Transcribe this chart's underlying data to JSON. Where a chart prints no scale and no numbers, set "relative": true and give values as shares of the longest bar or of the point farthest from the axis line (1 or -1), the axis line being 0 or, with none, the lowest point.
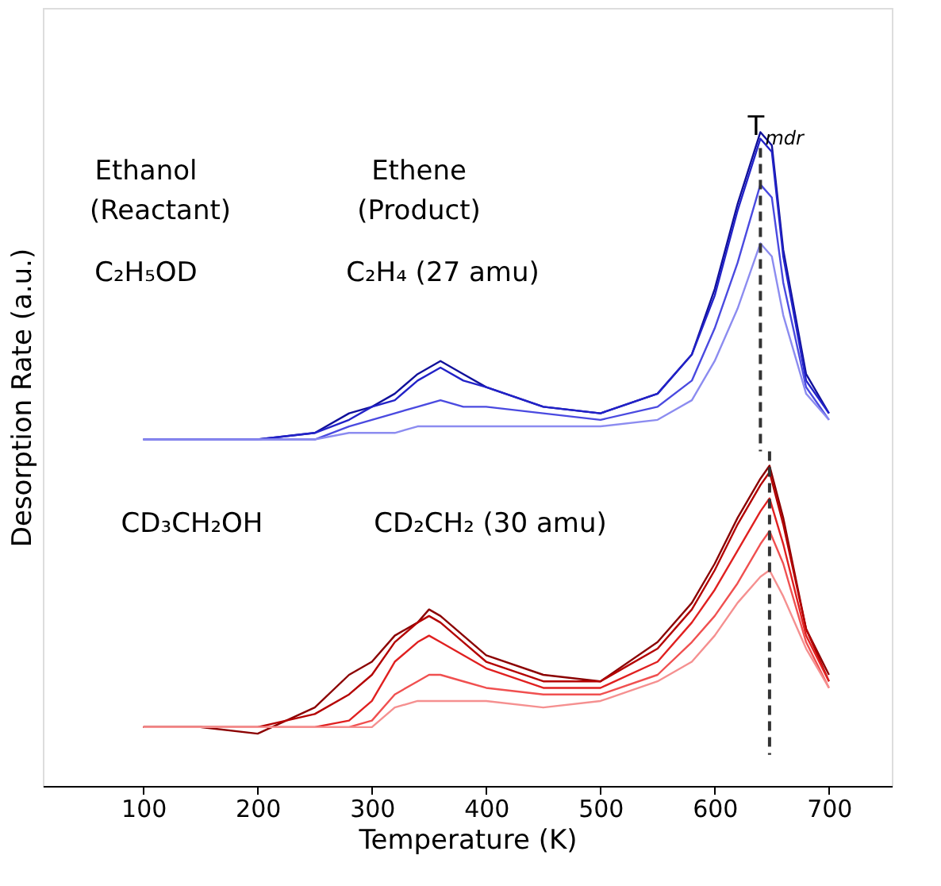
{
  "chart_data": {
    "type": "line",
    "relative": true,
    "xlabel": "Temperature (K)",
    "ylabel": "Desorption Rate (a.u.)",
    "xlim": [
      12,
      755
    ],
    "xticks": [
      100,
      200,
      300,
      400,
      500,
      600,
      700
    ],
    "grid": false,
    "legend": false,
    "marker": "none",
    "line_style": "solid",
    "series": [
      {
        "color": "#10109a",
        "x": [
          100,
          150,
          200,
          250,
          280,
          300,
          320,
          340,
          360,
          380,
          400,
          450,
          500,
          550,
          580,
          600,
          620,
          640,
          650,
          660,
          680,
          700
        ],
        "values": [
          0.53,
          0.53,
          0.53,
          0.54,
          0.57,
          0.58,
          0.6,
          0.63,
          0.65,
          0.63,
          0.61,
          0.58,
          0.57,
          0.6,
          0.66,
          0.76,
          0.89,
          1.0,
          0.98,
          0.82,
          0.63,
          0.57
        ]
      },
      {
        "color": "#2222c8",
        "x": [
          100,
          150,
          200,
          250,
          280,
          300,
          320,
          340,
          360,
          380,
          400,
          450,
          500,
          550,
          580,
          600,
          620,
          640,
          650,
          660,
          680,
          700
        ],
        "values": [
          0.53,
          0.53,
          0.53,
          0.54,
          0.56,
          0.58,
          0.59,
          0.62,
          0.64,
          0.62,
          0.61,
          0.58,
          0.57,
          0.6,
          0.66,
          0.75,
          0.88,
          0.99,
          0.97,
          0.81,
          0.62,
          0.57
        ]
      },
      {
        "color": "#4a4ae0",
        "x": [
          100,
          150,
          200,
          250,
          280,
          300,
          320,
          340,
          360,
          380,
          400,
          450,
          500,
          550,
          580,
          600,
          620,
          640,
          650,
          660,
          680,
          700
        ],
        "values": [
          0.53,
          0.53,
          0.53,
          0.53,
          0.55,
          0.56,
          0.57,
          0.58,
          0.59,
          0.58,
          0.58,
          0.57,
          0.56,
          0.58,
          0.62,
          0.7,
          0.8,
          0.92,
          0.9,
          0.77,
          0.61,
          0.56
        ]
      },
      {
        "color": "#8c8cf0",
        "x": [
          100,
          150,
          200,
          250,
          280,
          300,
          320,
          340,
          360,
          380,
          400,
          450,
          500,
          550,
          580,
          600,
          620,
          640,
          650,
          660,
          680,
          700
        ],
        "values": [
          0.53,
          0.53,
          0.53,
          0.53,
          0.54,
          0.54,
          0.54,
          0.55,
          0.55,
          0.55,
          0.55,
          0.55,
          0.55,
          0.56,
          0.59,
          0.65,
          0.73,
          0.83,
          0.81,
          0.72,
          0.6,
          0.56
        ]
      },
      {
        "color": "#8b0000",
        "x": [
          100,
          150,
          200,
          250,
          280,
          300,
          320,
          340,
          350,
          360,
          380,
          400,
          450,
          500,
          550,
          580,
          600,
          620,
          640,
          648,
          660,
          680,
          700
        ],
        "values": [
          0.09,
          0.09,
          0.08,
          0.12,
          0.17,
          0.19,
          0.23,
          0.25,
          0.27,
          0.26,
          0.23,
          0.2,
          0.17,
          0.16,
          0.22,
          0.28,
          0.34,
          0.41,
          0.47,
          0.49,
          0.41,
          0.24,
          0.17
        ]
      },
      {
        "color": "#b40000",
        "x": [
          100,
          150,
          200,
          250,
          280,
          300,
          320,
          340,
          350,
          360,
          380,
          400,
          450,
          500,
          550,
          580,
          600,
          620,
          640,
          648,
          660,
          680,
          700
        ],
        "values": [
          0.09,
          0.09,
          0.09,
          0.11,
          0.14,
          0.17,
          0.22,
          0.25,
          0.26,
          0.25,
          0.22,
          0.19,
          0.16,
          0.16,
          0.21,
          0.27,
          0.33,
          0.4,
          0.46,
          0.48,
          0.4,
          0.24,
          0.16
        ]
      },
      {
        "color": "#e02020",
        "x": [
          100,
          150,
          200,
          250,
          280,
          300,
          320,
          340,
          350,
          360,
          380,
          400,
          450,
          500,
          550,
          580,
          600,
          620,
          640,
          648,
          660,
          680,
          700
        ],
        "values": [
          0.09,
          0.09,
          0.09,
          0.09,
          0.1,
          0.13,
          0.19,
          0.22,
          0.23,
          0.22,
          0.2,
          0.18,
          0.15,
          0.15,
          0.19,
          0.25,
          0.3,
          0.36,
          0.42,
          0.44,
          0.37,
          0.23,
          0.16
        ]
      },
      {
        "color": "#f05050",
        "x": [
          100,
          150,
          200,
          250,
          280,
          300,
          320,
          340,
          350,
          360,
          380,
          400,
          450,
          500,
          550,
          580,
          600,
          620,
          640,
          648,
          660,
          680,
          700
        ],
        "values": [
          0.09,
          0.09,
          0.09,
          0.09,
          0.09,
          0.1,
          0.14,
          0.16,
          0.17,
          0.17,
          0.16,
          0.15,
          0.14,
          0.14,
          0.17,
          0.22,
          0.26,
          0.31,
          0.37,
          0.39,
          0.34,
          0.22,
          0.15
        ]
      },
      {
        "color": "#f59090",
        "x": [
          100,
          150,
          200,
          250,
          280,
          300,
          320,
          340,
          350,
          360,
          380,
          400,
          450,
          500,
          550,
          580,
          600,
          620,
          640,
          648,
          660,
          680,
          700
        ],
        "values": [
          0.09,
          0.09,
          0.09,
          0.09,
          0.09,
          0.09,
          0.12,
          0.13,
          0.13,
          0.13,
          0.13,
          0.13,
          0.12,
          0.13,
          0.16,
          0.19,
          0.23,
          0.28,
          0.32,
          0.33,
          0.29,
          0.21,
          0.15
        ]
      }
    ],
    "ref_lines": [
      {
        "axis": "x",
        "value": 640,
        "label": "T$_{mdr}$",
        "line_style": "dashed",
        "color": "#333333"
      },
      {
        "axis": "x",
        "value": 648,
        "line_style": "dashed",
        "color": "#333333"
      }
    ],
    "annotations": [
      "Ethanol",
      "(Reactant)",
      "Ethene",
      "(Product)",
      "C₂H₅OD",
      "C₂H₄ (27 amu)",
      "CD₃CH₂OH",
      "CD₂CH₂ (30 amu)"
    ]
  }
}
